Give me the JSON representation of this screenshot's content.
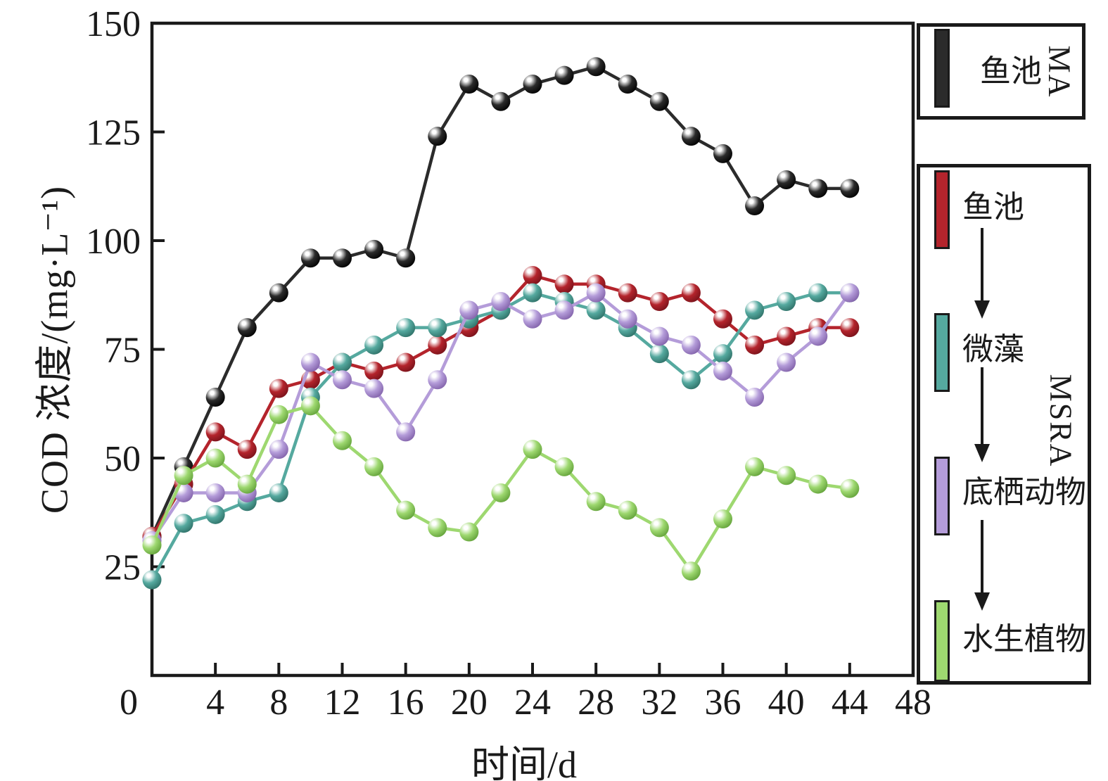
{
  "chart_data": {
    "type": "line",
    "title": "",
    "xlabel": "时间/d",
    "ylabel": "COD 浓度/(mg·L⁻¹)",
    "origin_label": "0",
    "xlim": [
      0,
      48
    ],
    "ylim": [
      0,
      150
    ],
    "x_ticks": [
      4,
      8,
      12,
      16,
      20,
      24,
      28,
      32,
      36,
      40,
      44,
      48
    ],
    "y_ticks": [
      25,
      50,
      75,
      100,
      125,
      150
    ],
    "grid": false,
    "legend_position": "right-outside",
    "marker": "sphere",
    "x": [
      0,
      2,
      4,
      6,
      8,
      10,
      12,
      14,
      16,
      18,
      20,
      22,
      24,
      26,
      28,
      30,
      32,
      34,
      36,
      38,
      40,
      42,
      44
    ],
    "series": [
      {
        "name": "鱼池 (MA)",
        "group": "MA",
        "color": "#2b2b2b",
        "dark": "#000000",
        "values": [
          32,
          48,
          64,
          80,
          88,
          96,
          96,
          98,
          96,
          124,
          136,
          132,
          136,
          138,
          140,
          136,
          132,
          124,
          120,
          108,
          114,
          112,
          112
        ]
      },
      {
        "name": "鱼池 (MSRA)",
        "group": "MSRA",
        "color": "#b4242c",
        "dark": "#77121a",
        "values": [
          32,
          44,
          56,
          52,
          66,
          68,
          72,
          70,
          72,
          76,
          80,
          84,
          92,
          90,
          90,
          88,
          86,
          88,
          82,
          76,
          78,
          80,
          80
        ]
      },
      {
        "name": "微藻",
        "group": "MSRA",
        "color": "#55a99f",
        "dark": "#2e6f66",
        "values": [
          22,
          35,
          37,
          40,
          42,
          64,
          72,
          76,
          80,
          80,
          82,
          84,
          88,
          86,
          84,
          80,
          74,
          68,
          74,
          84,
          86,
          88,
          88
        ]
      },
      {
        "name": "底栖动物",
        "group": "MSRA",
        "color": "#b49cd9",
        "dark": "#8060a8",
        "values": [
          31,
          42,
          42,
          42,
          52,
          72,
          68,
          66,
          56,
          68,
          84,
          86,
          82,
          84,
          88,
          82,
          78,
          76,
          70,
          64,
          72,
          78,
          88
        ]
      },
      {
        "name": "水生植物",
        "group": "MSRA",
        "color": "#9ed870",
        "dark": "#61a038",
        "values": [
          30,
          46,
          50,
          44,
          60,
          62,
          54,
          48,
          38,
          34,
          33,
          42,
          52,
          48,
          40,
          38,
          34,
          24,
          36,
          48,
          46,
          44,
          43
        ]
      }
    ]
  },
  "legend": {
    "ma_box": {
      "label": "鱼池",
      "tag": "MA",
      "color": "#2b2b2b"
    },
    "msra_box": {
      "tag": "MSRA",
      "items": [
        {
          "label": "鱼池",
          "color": "#b4242c"
        },
        {
          "label": "微藻",
          "color": "#55a99f"
        },
        {
          "label": "底栖动物",
          "color": "#b49cd9"
        },
        {
          "label": "水生植物",
          "color": "#9ed870"
        }
      ]
    }
  }
}
